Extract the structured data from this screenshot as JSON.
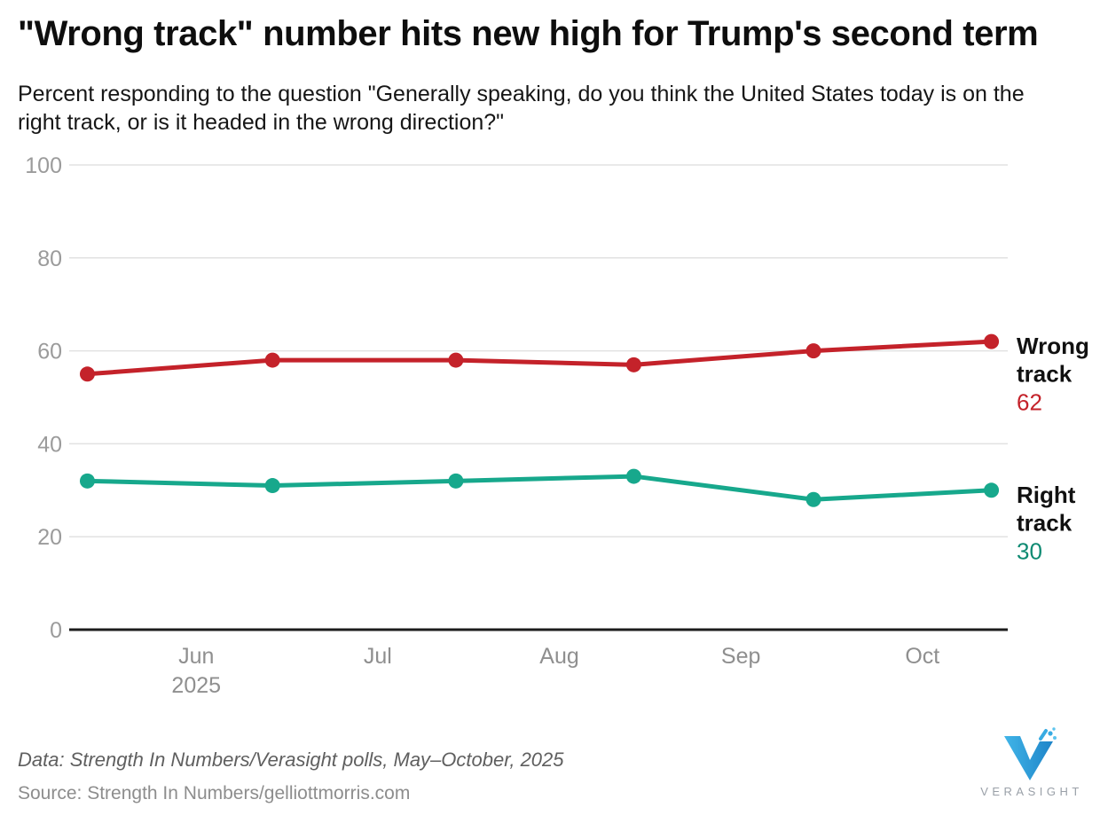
{
  "header": {
    "title": "\"Wrong track\" number hits new high for Trump's second term",
    "subtitle": "Percent responding to the question \"Generally speaking, do you think the United States today is on the right track, or is it headed in the wrong direction?\""
  },
  "chart_data": {
    "type": "line",
    "title": "\"Wrong track\" number hits new high for Trump's second term",
    "x_axis": {
      "unit": "month (1 = Jun 2025)",
      "domain": [
        0.3,
        5.47
      ],
      "ticks": [
        {
          "m": 1,
          "label": "Jun",
          "sublabel": "2025"
        },
        {
          "m": 2,
          "label": "Jul"
        },
        {
          "m": 3,
          "label": "Aug"
        },
        {
          "m": 4,
          "label": "Sep"
        },
        {
          "m": 5,
          "label": "Oct"
        }
      ]
    },
    "y_axis": {
      "domain": [
        0,
        100
      ],
      "ticks": [
        0,
        20,
        40,
        60,
        80,
        100
      ],
      "grid": true
    },
    "legend_position": "right-end-labels",
    "series": [
      {
        "name": "Wrong track",
        "color": "#c4222a",
        "value_color": "#c4222a",
        "end_value_label": 62,
        "x_months": [
          0.4,
          1.42,
          2.43,
          3.41,
          4.4,
          5.38
        ],
        "values": [
          55,
          58,
          58,
          57,
          60,
          62
        ]
      },
      {
        "name": "Right track",
        "color": "#17a88c",
        "value_color": "#0e8a72",
        "end_value_label": 30,
        "x_months": [
          0.4,
          1.42,
          2.43,
          3.41,
          4.4,
          5.38
        ],
        "values": [
          32,
          31,
          32,
          33,
          28,
          30
        ]
      }
    ],
    "colors": {
      "grid": "#e2e2e2",
      "axis": "#1c1c1c",
      "y_tick_text": "#9b9b9b",
      "x_tick_text": "#8f8f8f",
      "series_label_text": "#111111"
    }
  },
  "footer": {
    "data_note": "Data: Strength In Numbers/Verasight polls, May–October, 2025",
    "source": "Source: Strength In Numbers/gelliottmorris.com",
    "logo_text": "VERASIGHT"
  }
}
